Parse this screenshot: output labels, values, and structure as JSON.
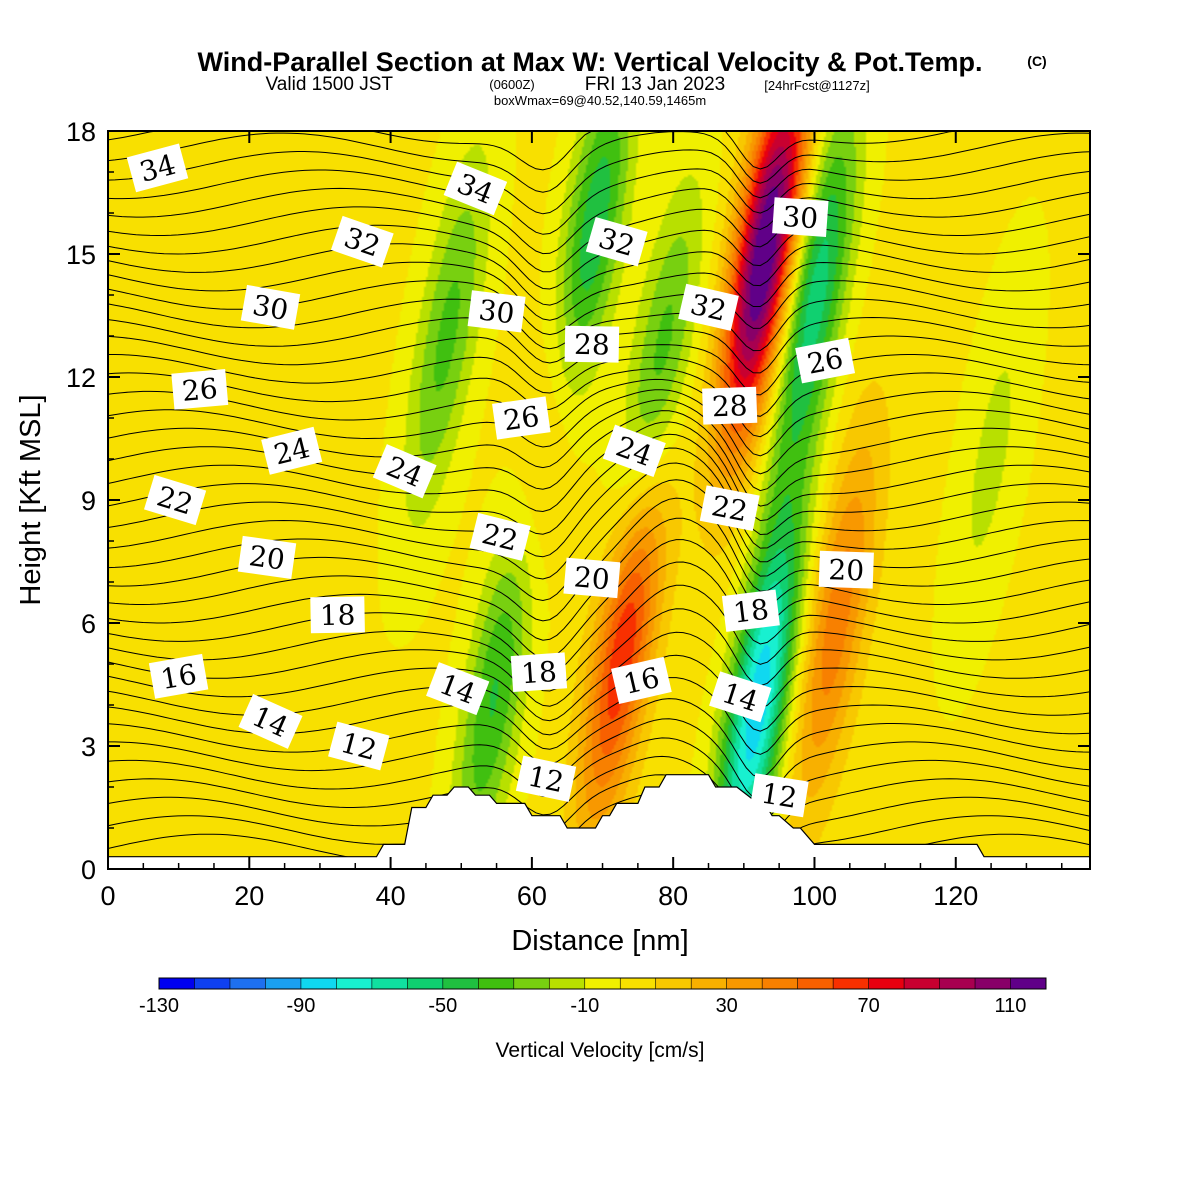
{
  "title": {
    "main": "Wind-Parallel Section at Max W: Vertical Velocity & Pot.Temp.",
    "copyright": "(C)",
    "valid_prefix": "Valid 1500 JST",
    "utc": "(0600Z)",
    "valid_date": "FRI 13 Jan 2023",
    "forecast": "[24hrFcst@1127z]",
    "box_info": "boxWmax=69@40.52,140.59,1465m"
  },
  "colors": {
    "background": "#ffffff",
    "contour": "#000000",
    "terrain": "#ffffff"
  },
  "chart_data": {
    "type": "heatmap",
    "title": "Wind-Parallel Section at Max W: Vertical Velocity & Pot.Temp.",
    "xlabel": "Distance [nm]",
    "ylabel": "Height [Kft MSL]",
    "xlim": [
      0,
      139
    ],
    "ylim": [
      0,
      18
    ],
    "x_ticks": [
      "0",
      "20",
      "40",
      "60",
      "80",
      "100",
      "120"
    ],
    "y_ticks": [
      "0",
      "3",
      "6",
      "9",
      "12",
      "15",
      "18"
    ],
    "colorbar": {
      "label": "Vertical Velocity [cm/s]",
      "min": -130,
      "max": 130,
      "step": 10,
      "tick_labels": [
        "-130",
        "-90",
        "-50",
        "-10",
        "30",
        "70",
        "110"
      ],
      "colors": [
        "#0000f0",
        "#0f40f0",
        "#1e70f0",
        "#1aa0f0",
        "#10d8f0",
        "#18f0d0",
        "#10e0a0",
        "#10d070",
        "#20c040",
        "#40c010",
        "#78d010",
        "#b8e000",
        "#f0f000",
        "#f8e000",
        "#f8c800",
        "#f8b000",
        "#f89800",
        "#f88000",
        "#f86000",
        "#f83000",
        "#e80010",
        "#c80030",
        "#a80050",
        "#880068",
        "#600088"
      ]
    },
    "vertical_velocity_cm_s": {
      "description_units": "cm/s",
      "background": 12,
      "features": [
        {
          "x": 48,
          "z": 13,
          "peak": -35
        },
        {
          "x": 55,
          "z": 4.5,
          "peak": -45
        },
        {
          "x": 63,
          "z": 11,
          "peak": 30
        },
        {
          "x": 68,
          "z": 15,
          "peak": -60
        },
        {
          "x": 73,
          "z": 5.5,
          "peak": 70
        },
        {
          "x": 78,
          "z": 12,
          "peak": -40
        },
        {
          "x": 92,
          "z": 4,
          "peak": -90
        },
        {
          "x": 93,
          "z": 15,
          "peak": 125
        },
        {
          "x": 100,
          "z": 14,
          "peak": -60
        },
        {
          "x": 103,
          "z": 6,
          "peak": 45
        },
        {
          "x": 125,
          "z": 10,
          "peak": -15
        }
      ]
    },
    "potential_temperature": {
      "contour_levels": [
        12,
        14,
        16,
        18,
        20,
        22,
        24,
        26,
        28,
        30,
        32,
        34
      ],
      "labels": [
        {
          "text": "34",
          "x": 7,
          "z": 17.1
        },
        {
          "text": "34",
          "x": 52,
          "z": 16.6
        },
        {
          "text": "32",
          "x": 36,
          "z": 15.3
        },
        {
          "text": "32",
          "x": 72,
          "z": 15.3
        },
        {
          "text": "32",
          "x": 85,
          "z": 13.7
        },
        {
          "text": "30",
          "x": 23,
          "z": 13.7
        },
        {
          "text": "30",
          "x": 55,
          "z": 13.6
        },
        {
          "text": "30",
          "x": 98,
          "z": 15.9
        },
        {
          "text": "28",
          "x": 68.5,
          "z": 12.8
        },
        {
          "text": "28",
          "x": 88,
          "z": 11.3
        },
        {
          "text": "26",
          "x": 13,
          "z": 11.7
        },
        {
          "text": "26",
          "x": 58.5,
          "z": 11.0
        },
        {
          "text": "26",
          "x": 101.5,
          "z": 12.4
        },
        {
          "text": "24",
          "x": 26,
          "z": 10.2
        },
        {
          "text": "24",
          "x": 42,
          "z": 9.7
        },
        {
          "text": "24",
          "x": 74.5,
          "z": 10.2
        },
        {
          "text": "22",
          "x": 9.5,
          "z": 9.0
        },
        {
          "text": "22",
          "x": 55.5,
          "z": 8.1
        },
        {
          "text": "22",
          "x": 88,
          "z": 8.8
        },
        {
          "text": "20",
          "x": 22.5,
          "z": 7.6
        },
        {
          "text": "20",
          "x": 68.5,
          "z": 7.1
        },
        {
          "text": "20",
          "x": 104.5,
          "z": 7.3
        },
        {
          "text": "18",
          "x": 32.5,
          "z": 6.2
        },
        {
          "text": "18",
          "x": 61,
          "z": 4.8
        },
        {
          "text": "18",
          "x": 91,
          "z": 6.3
        },
        {
          "text": "16",
          "x": 10,
          "z": 4.7
        },
        {
          "text": "16",
          "x": 75.5,
          "z": 4.6
        },
        {
          "text": "14",
          "x": 23,
          "z": 3.6
        },
        {
          "text": "14",
          "x": 49.5,
          "z": 4.4
        },
        {
          "text": "14",
          "x": 89.5,
          "z": 4.2
        },
        {
          "text": "12",
          "x": 35.5,
          "z": 3.0
        },
        {
          "text": "12",
          "x": 62,
          "z": 2.2
        },
        {
          "text": "12",
          "x": 95,
          "z": 1.8
        }
      ]
    },
    "terrain_kft": {
      "x": [
        0,
        38,
        39,
        42,
        43,
        45,
        46,
        48,
        49,
        51,
        52,
        54,
        55,
        58,
        59,
        60,
        61,
        63,
        64,
        65,
        66,
        67,
        68,
        69,
        70,
        71,
        72,
        75,
        76,
        78,
        79,
        82,
        83,
        85,
        86,
        88,
        89,
        92,
        93,
        94,
        95,
        97,
        98,
        100,
        101,
        123,
        124,
        139
      ],
      "z": [
        0.3,
        0.3,
        0.6,
        0.6,
        1.5,
        1.5,
        1.8,
        1.8,
        2.0,
        2.0,
        1.8,
        1.8,
        1.6,
        1.6,
        1.6,
        1.3,
        1.3,
        1.3,
        1.3,
        1.0,
        1.0,
        1.0,
        1.0,
        1.0,
        1.3,
        1.3,
        1.6,
        1.6,
        2.0,
        2.0,
        2.3,
        2.3,
        2.3,
        2.3,
        2.0,
        2.0,
        2.0,
        1.6,
        1.6,
        1.3,
        1.3,
        1.0,
        1.0,
        0.6,
        0.6,
        0.6,
        0.3,
        0.3
      ]
    }
  }
}
